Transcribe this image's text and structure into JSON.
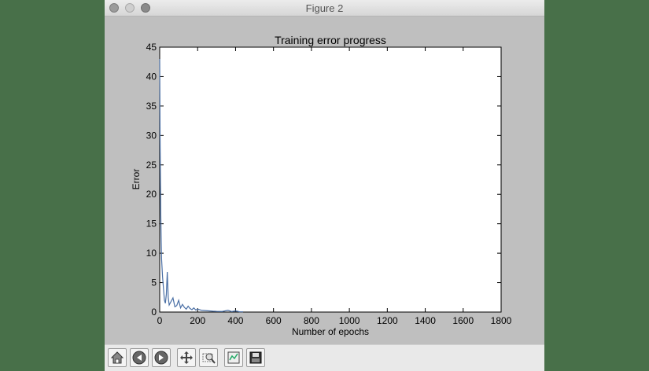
{
  "window": {
    "title": "Figure 2"
  },
  "toolbar": {
    "buttons": [
      {
        "name": "home-icon"
      },
      {
        "name": "back-arrow-icon"
      },
      {
        "name": "forward-arrow-icon"
      },
      {
        "name": "pan-move-icon"
      },
      {
        "name": "zoom-rect-icon"
      },
      {
        "name": "configure-subplots-icon"
      },
      {
        "name": "save-floppy-icon"
      }
    ]
  },
  "chart_data": {
    "type": "line",
    "title": "Training error progress",
    "xlabel": "Number of epochs",
    "ylabel": "Error",
    "xlim": [
      0,
      1800
    ],
    "ylim": [
      0,
      45
    ],
    "xticks": [
      0,
      200,
      400,
      600,
      800,
      1000,
      1200,
      1400,
      1600,
      1800
    ],
    "yticks": [
      0,
      5,
      10,
      15,
      20,
      25,
      30,
      35,
      40,
      45
    ],
    "grid": false,
    "line_color": "#4a6fa5",
    "series": [
      {
        "x": [
          0,
          2,
          4,
          6,
          8,
          10,
          15,
          20,
          25,
          30,
          35,
          40,
          45,
          50,
          60,
          70,
          80,
          90,
          100,
          110,
          120,
          130,
          140,
          150,
          160,
          170,
          180,
          190,
          200,
          220,
          240,
          260,
          280,
          300,
          330,
          360,
          380,
          400,
          420,
          440
        ],
        "y": [
          43,
          30,
          22,
          16,
          12,
          9,
          6,
          4,
          2,
          1.5,
          3,
          6.8,
          2.5,
          1.2,
          1.8,
          2.4,
          0.9,
          1.1,
          2.0,
          0.7,
          1.3,
          0.8,
          0.5,
          1.0,
          0.6,
          0.4,
          0.7,
          0.35,
          0.5,
          0.3,
          0.25,
          0.2,
          0.15,
          0.12,
          0.1,
          0.3,
          0.08,
          0.2,
          0.05,
          0.04
        ]
      }
    ]
  }
}
